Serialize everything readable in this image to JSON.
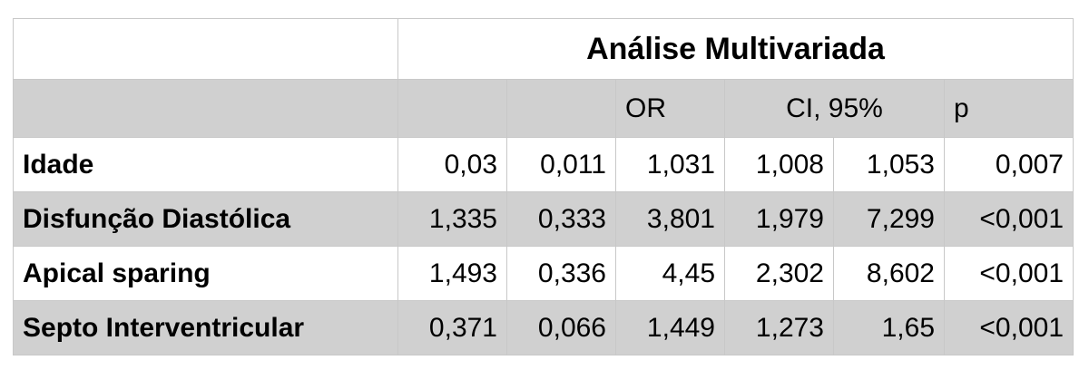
{
  "table": {
    "title": "Análise Multivariada",
    "header": {
      "or": "OR",
      "ci": "CI, 95%",
      "p": "p"
    },
    "rows": [
      [
        "Idade",
        "0,03",
        "0,011",
        "1,031",
        "1,008",
        "1,053",
        "0,007"
      ],
      [
        "Disfunção Diastólica",
        "1,335",
        "0,333",
        "3,801",
        "1,979",
        "7,299",
        "<0,001"
      ],
      [
        "Apical sparing",
        "1,493",
        "0,336",
        "4,45",
        "2,302",
        "8,602",
        "<0,001"
      ],
      [
        "Septo Interventricular",
        "0,371",
        "0,066",
        "1,449",
        "1,273",
        "1,65",
        "<0,001"
      ]
    ]
  }
}
